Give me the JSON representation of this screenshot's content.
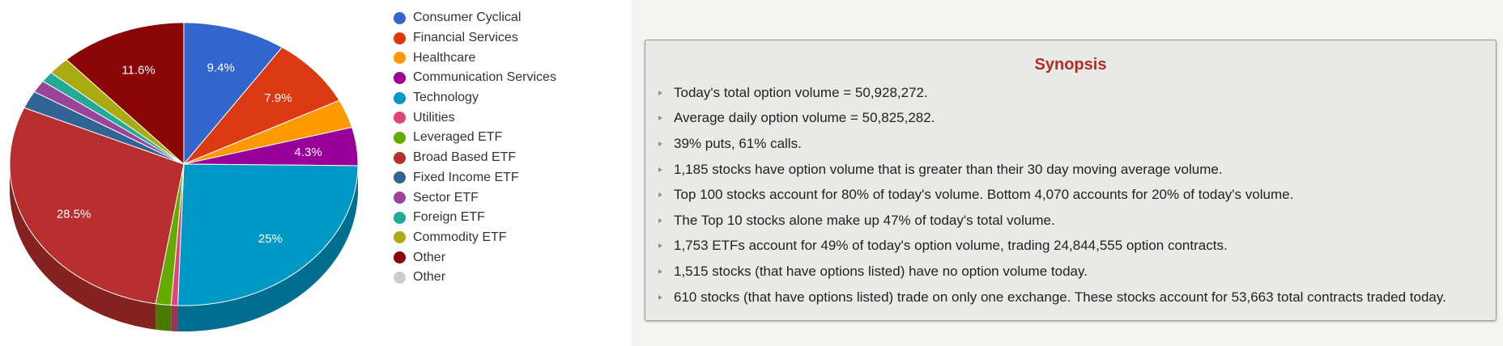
{
  "chart_data": {
    "type": "pie",
    "title": "",
    "categories": [
      "Consumer Cyclical",
      "Financial Services",
      "Healthcare",
      "Communication Services",
      "Technology",
      "Utilities",
      "Leveraged ETF",
      "Broad Based ETF",
      "Fixed Income ETF",
      "Sector ETF",
      "Foreign ETF",
      "Commodity ETF",
      "Other",
      "Other"
    ],
    "values": [
      9.4,
      7.9,
      3.2,
      4.3,
      25,
      0.6,
      1.4,
      28.5,
      2.0,
      1.4,
      1.2,
      2.0,
      11.6,
      0
    ],
    "data_labels": [
      "9.4%",
      "7.9%",
      "",
      "4.3%",
      "25%",
      "",
      "",
      "28.5%",
      "",
      "",
      "",
      "",
      "11.6%",
      ""
    ],
    "colors": [
      "#3366cc",
      "#dc3912",
      "#ff9900",
      "#990099",
      "#0099c6",
      "#dd4477",
      "#66aa00",
      "#b82e2e",
      "#316395",
      "#994499",
      "#22aa99",
      "#aaaa11",
      "#8b0707",
      "#cccccc"
    ],
    "style": "3d",
    "legend_position": "right"
  },
  "synopsis": {
    "title": "Synopsis",
    "items": [
      "Today's total option volume = 50,928,272.",
      "Average daily option volume = 50,825,282.",
      "39% puts, 61% calls.",
      "1,185 stocks have option volume that is greater than their 30 day moving average volume.",
      "Top 100 stocks account for 80% of today's volume. Bottom 4,070 accounts for 20% of today's volume.",
      "The Top 10 stocks alone make up 47% of today's total volume.",
      "1,753 ETFs account for 49% of today's option volume, trading 24,844,555 option contracts.",
      "1,515 stocks (that have options listed) have no option volume today.",
      "610 stocks (that have options listed) trade on only one exchange. These stocks account for 53,663 total contracts traded today."
    ]
  },
  "colors": {
    "synopsis_title": "#b52a25",
    "bullet": "#7aa27a",
    "panel_background": "#f3f3f2"
  },
  "icons": {
    "bullet": "triangle-bullet-icon"
  }
}
